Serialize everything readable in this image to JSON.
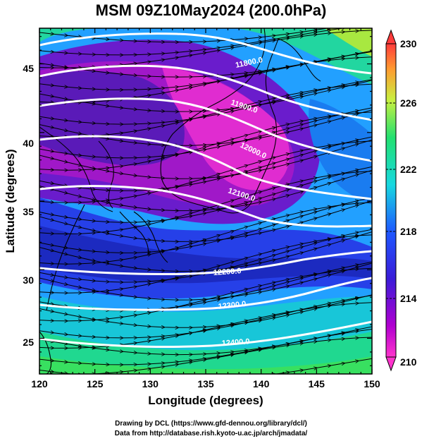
{
  "title": "MSM 09Z10May2024 (200.0hPa)",
  "x_axis": {
    "label": "Longitude (degrees)",
    "ticks": [
      "120",
      "125",
      "130",
      "135",
      "140",
      "145",
      "150"
    ],
    "range": [
      120,
      150
    ]
  },
  "y_axis": {
    "label": "Latitude  (degrees)",
    "ticks": [
      "25",
      "30",
      "35",
      "40",
      "45"
    ],
    "range": [
      22.4,
      47.6
    ]
  },
  "colorbar": {
    "ticks": [
      "210",
      "214",
      "218",
      "222",
      "226",
      "230"
    ],
    "range": [
      210,
      230
    ],
    "colormap": "rainbow (magenta-blue-cyan-green-yellow-red)"
  },
  "contours": [
    {
      "label": "11800.0"
    },
    {
      "label": "11900.0"
    },
    {
      "label": "12000.0"
    },
    {
      "label": "12100.0"
    },
    {
      "label": "12200.0"
    },
    {
      "label": "12300.0"
    },
    {
      "label": "12400.0"
    }
  ],
  "map_features": [
    "temperature shading (K)",
    "geopotential height contours (m)",
    "wind streamlines",
    "coastlines"
  ],
  "credits": {
    "line1": "Drawing by DCL (https://www.gfd-dennou.org/library/dcl/)",
    "line2": "Data from http://database.rish.kyoto-u.ac.jp/arch/jmadata/"
  }
}
